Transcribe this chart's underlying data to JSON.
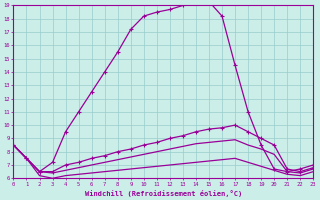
{
  "xlabel": "Windchill (Refroidissement éolien,°C)",
  "bg_color": "#cceee8",
  "line_color": "#990099",
  "grid_color": "#99cccc",
  "x_min": 0,
  "x_max": 23,
  "y_min": 6,
  "y_max": 19,
  "line1_x": [
    0,
    1,
    2,
    3,
    4,
    5,
    6,
    7,
    8,
    9,
    10,
    11,
    12,
    13,
    14,
    15,
    16,
    17,
    18,
    19,
    20,
    21,
    22,
    23
  ],
  "line1_y": [
    8.5,
    7.5,
    6.5,
    7.2,
    9.5,
    11.0,
    12.5,
    14.0,
    15.5,
    17.2,
    18.2,
    18.5,
    18.7,
    19.0,
    19.2,
    19.3,
    18.2,
    14.5,
    11.0,
    8.5,
    6.7,
    6.5,
    6.7,
    7.0
  ],
  "line2_x": [
    0,
    1,
    2,
    3,
    4,
    5,
    6,
    7,
    8,
    9,
    10,
    11,
    12,
    13,
    14,
    15,
    16,
    17,
    18,
    19,
    20,
    21,
    22,
    23
  ],
  "line2_y": [
    8.5,
    7.5,
    6.5,
    6.5,
    7.0,
    7.2,
    7.5,
    7.7,
    8.0,
    8.2,
    8.5,
    8.7,
    9.0,
    9.2,
    9.5,
    9.7,
    9.8,
    10.0,
    9.5,
    9.0,
    8.5,
    6.7,
    6.5,
    6.8
  ],
  "line3_x": [
    0,
    1,
    2,
    3,
    4,
    5,
    6,
    7,
    8,
    9,
    10,
    11,
    12,
    13,
    14,
    15,
    16,
    17,
    18,
    19,
    20,
    21,
    22,
    23
  ],
  "line3_y": [
    8.5,
    7.5,
    6.5,
    6.4,
    6.6,
    6.8,
    7.0,
    7.2,
    7.4,
    7.6,
    7.8,
    8.0,
    8.2,
    8.4,
    8.6,
    8.7,
    8.8,
    8.9,
    8.5,
    8.2,
    7.8,
    6.5,
    6.4,
    6.7
  ],
  "line4_x": [
    0,
    1,
    2,
    3,
    4,
    5,
    6,
    7,
    8,
    9,
    10,
    11,
    12,
    13,
    14,
    15,
    16,
    17,
    18,
    19,
    20,
    21,
    22,
    23
  ],
  "line4_y": [
    8.5,
    7.5,
    6.2,
    6.0,
    6.2,
    6.3,
    6.4,
    6.5,
    6.6,
    6.7,
    6.8,
    6.9,
    7.0,
    7.1,
    7.2,
    7.3,
    7.4,
    7.5,
    7.2,
    6.9,
    6.6,
    6.3,
    6.2,
    6.5
  ]
}
